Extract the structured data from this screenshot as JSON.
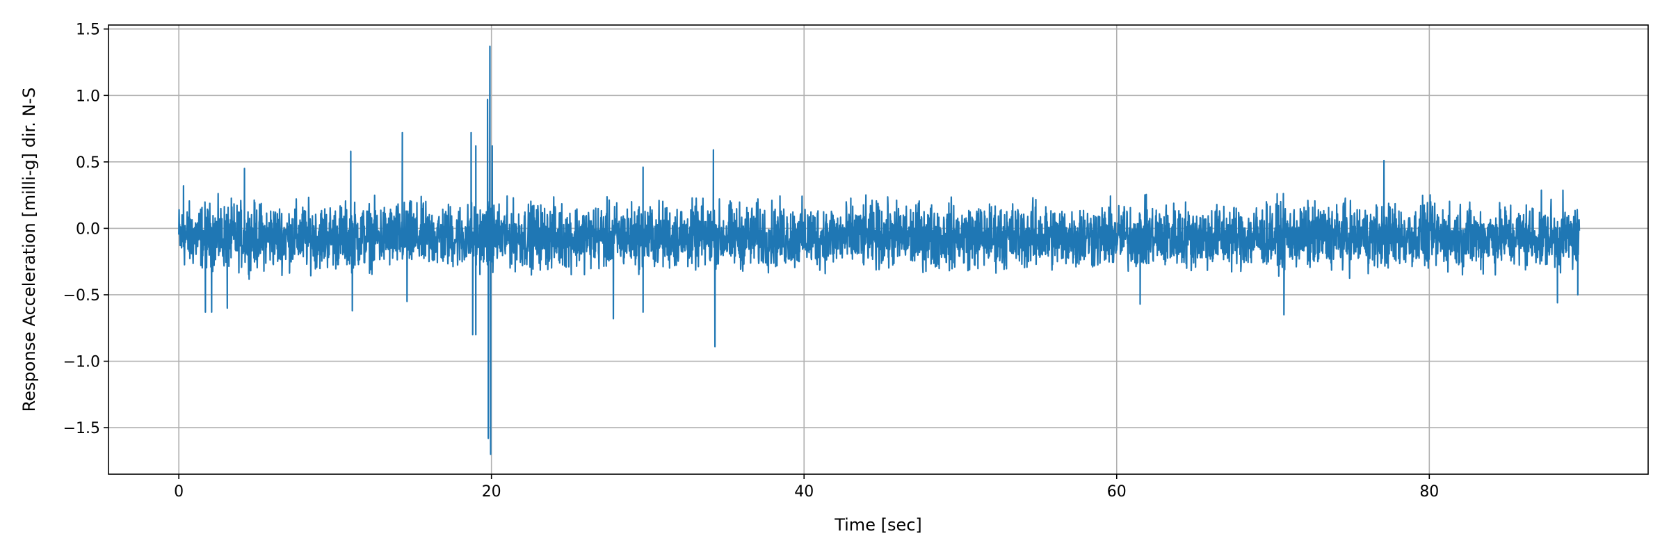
{
  "chart_data": {
    "type": "line",
    "title": "",
    "xlabel": "Time [sec]",
    "ylabel": "Response Acceleration [milli-g] dir. N-S",
    "xlim": [
      -4.5,
      94.0
    ],
    "ylim": [
      -1.85,
      1.53
    ],
    "xticks": [
      0,
      20,
      40,
      60,
      80
    ],
    "xtick_labels": [
      "0",
      "20",
      "40",
      "60",
      "80"
    ],
    "yticks": [
      -1.5,
      -1.0,
      -0.5,
      0.0,
      0.5,
      1.0,
      1.5
    ],
    "ytick_labels": [
      "−1.5",
      "−1.0",
      "−0.5",
      "0.0",
      "0.5",
      "1.0",
      "1.5"
    ],
    "grid": true,
    "series": [
      {
        "color": "#1f77b4",
        "x_range": [
          0,
          89.6
        ],
        "baseline": -0.07,
        "typical_range": [
          -0.4,
          0.3
        ],
        "peaks": [
          {
            "x": 0.3,
            "y": 0.32
          },
          {
            "x": 1.7,
            "y": -0.63
          },
          {
            "x": 2.1,
            "y": -0.63
          },
          {
            "x": 3.1,
            "y": -0.6
          },
          {
            "x": 4.2,
            "y": 0.45
          },
          {
            "x": 11.0,
            "y": 0.58
          },
          {
            "x": 11.1,
            "y": -0.62
          },
          {
            "x": 14.3,
            "y": 0.72
          },
          {
            "x": 14.6,
            "y": -0.55
          },
          {
            "x": 18.7,
            "y": 0.72
          },
          {
            "x": 18.8,
            "y": -0.8
          },
          {
            "x": 19.0,
            "y": -0.8
          },
          {
            "x": 19.0,
            "y": 0.62
          },
          {
            "x": 19.75,
            "y": 0.97
          },
          {
            "x": 19.8,
            "y": -1.58
          },
          {
            "x": 19.9,
            "y": 1.37
          },
          {
            "x": 19.95,
            "y": -1.7
          },
          {
            "x": 20.05,
            "y": 0.62
          },
          {
            "x": 27.8,
            "y": -0.68
          },
          {
            "x": 29.7,
            "y": 0.46
          },
          {
            "x": 29.7,
            "y": -0.63
          },
          {
            "x": 34.2,
            "y": 0.59
          },
          {
            "x": 34.3,
            "y": -0.89
          },
          {
            "x": 61.5,
            "y": -0.57
          },
          {
            "x": 70.7,
            "y": -0.65
          },
          {
            "x": 77.1,
            "y": 0.51
          },
          {
            "x": 88.2,
            "y": -0.56
          },
          {
            "x": 89.5,
            "y": -0.5
          }
        ]
      }
    ]
  }
}
